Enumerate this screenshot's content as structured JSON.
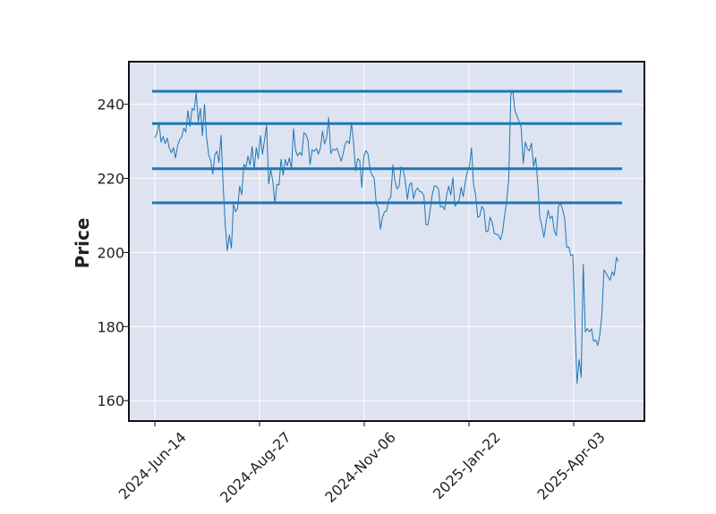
{
  "chart_data": {
    "type": "line",
    "title": "",
    "xlabel": "",
    "ylabel": "Price",
    "ylim": [
      154.5,
      251.5
    ],
    "grid": true,
    "x_ticks": [
      "2024-Jun-14",
      "2024-Aug-27",
      "2024-Nov-06",
      "2025-Jan-22",
      "2025-Apr-03"
    ],
    "y_ticks": [
      160,
      180,
      200,
      220,
      240
    ],
    "hlines": [
      243.5,
      234.8,
      222.6,
      213.4
    ],
    "series": [
      {
        "values": [
          231.0,
          232.1,
          235.0,
          229.8,
          231.3,
          229.4,
          230.9,
          228.2,
          226.9,
          228.3,
          225.5,
          228.8,
          230.5,
          231.2,
          233.6,
          232.5,
          238.3,
          234.0,
          238.9,
          238.3,
          243.2,
          235.3,
          238.9,
          231.5,
          240.0,
          231.0,
          226.5,
          224.7,
          221.2,
          226.4,
          227.3,
          224.3,
          231.6,
          218.3,
          207.6,
          200.5,
          204.7,
          201.2,
          213.0,
          211.0,
          212.0,
          217.9,
          215.6,
          223.8,
          223.0,
          226.0,
          223.6,
          228.6,
          222.3,
          228.3,
          225.3,
          231.6,
          226.5,
          230.3,
          234.4,
          218.5,
          222.4,
          219.2,
          213.3,
          218.4,
          218.2,
          225.2,
          220.9,
          225.1,
          223.4,
          225.5,
          222.6,
          233.4,
          227.6,
          226.1,
          227.0,
          226.2,
          232.3,
          231.9,
          230.3,
          223.7,
          227.7,
          227.3,
          228.1,
          226.6,
          228.2,
          232.7,
          229.3,
          231.0,
          236.4,
          226.7,
          227.9,
          227.6,
          228.1,
          226.5,
          224.6,
          226.7,
          229.4,
          230.1,
          229.4,
          235.0,
          229.8,
          222.0,
          225.3,
          224.8,
          217.6,
          225.9,
          227.5,
          226.6,
          222.3,
          220.9,
          220.0,
          213.0,
          212.1,
          206.3,
          209.5,
          211.0,
          211.2,
          214.2,
          214.9,
          223.6,
          219.4,
          217.2,
          217.9,
          223.1,
          222.2,
          219.3,
          214.3,
          218.2,
          218.8,
          214.5,
          216.7,
          217.4,
          216.4,
          216.3,
          215.3,
          207.5,
          207.5,
          211.3,
          215.5,
          217.9,
          217.9,
          217.2,
          212.3,
          212.5,
          211.6,
          215.6,
          217.9,
          215.5,
          220.2,
          212.5,
          213.2,
          214.1,
          217.6,
          215.1,
          219.0,
          221.8,
          223.3,
          228.2,
          218.3,
          215.6,
          209.5,
          209.8,
          212.4,
          211.6,
          205.6,
          205.8,
          209.5,
          208.1,
          205.2,
          204.9,
          204.7,
          203.4,
          205.5,
          210.0,
          213.8,
          220.0,
          242.7,
          243.5,
          238.2,
          236.9,
          235.3,
          233.8,
          224.0,
          229.8,
          228.0,
          227.4,
          229.5,
          223.2,
          225.6,
          218.9,
          209.6,
          207.1,
          204.1,
          207.9,
          211.4,
          209.1,
          209.9,
          205.8,
          204.6,
          212.5,
          213.3,
          211.6,
          209.4,
          201.4,
          201.5,
          199.1,
          199.4,
          180.4,
          164.6,
          171.1,
          166.3,
          196.8,
          178.6,
          179.4,
          178.6,
          179.4,
          176.0,
          176.4,
          174.9,
          177.8,
          183.3,
          195.3,
          194.5,
          193.4,
          192.5,
          194.8,
          193.8,
          198.7,
          197.5
        ]
      }
    ]
  }
}
